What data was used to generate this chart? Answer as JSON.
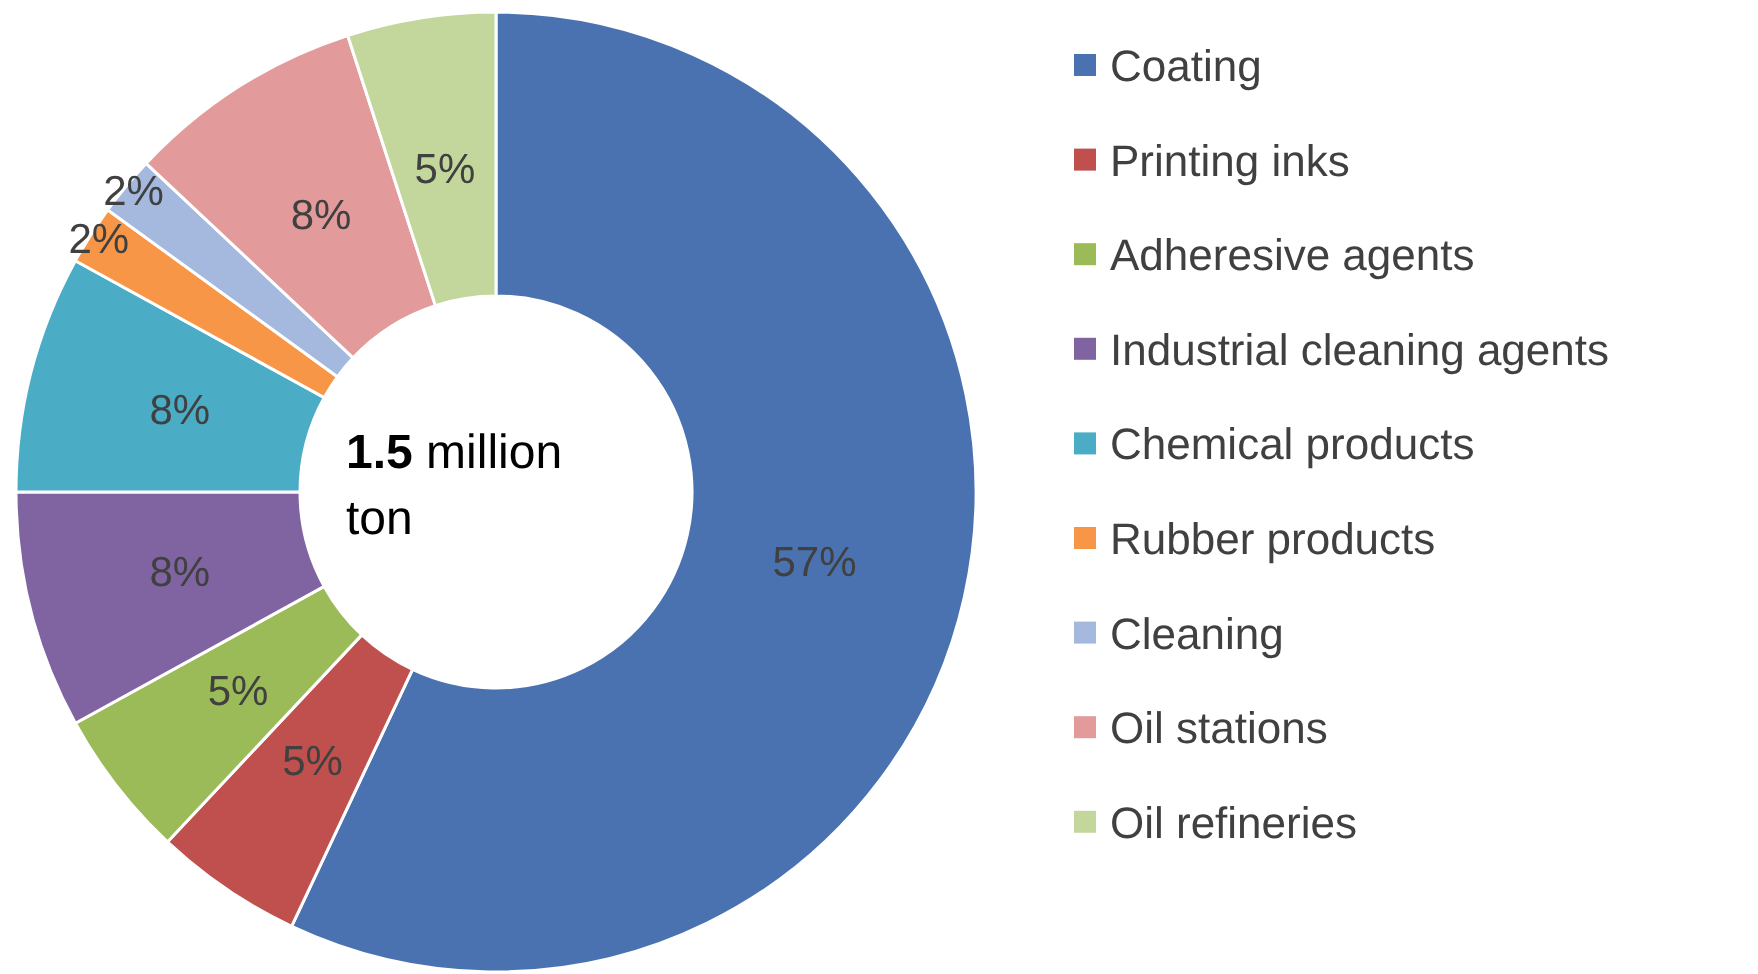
{
  "chart_data": {
    "type": "donut",
    "categories": [
      "Coating",
      "Printing inks",
      "Adheresive agents",
      "Industrial cleaning agents",
      "Chemical products",
      "Rubber products",
      "Cleaning",
      "Oil stations",
      "Oil refineries"
    ],
    "values": [
      57,
      5,
      5,
      8,
      8,
      2,
      2,
      8,
      5
    ],
    "value_labels": [
      "57%",
      "5%",
      "5%",
      "8%",
      "8%",
      "2%",
      "2%",
      "8%",
      "5%"
    ],
    "colors": [
      "#4a72b0",
      "#c0504d",
      "#9bbb59",
      "#8064a2",
      "#4bacc6",
      "#f79646",
      "#a5b9de",
      "#e39a9a",
      "#c3d69b"
    ],
    "annotations": [
      "1.5 million ton"
    ],
    "legend": "right"
  }
}
